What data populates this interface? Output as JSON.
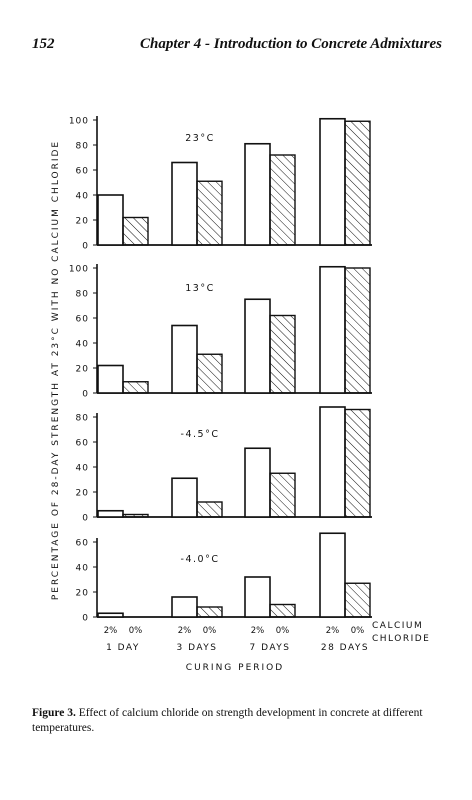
{
  "header": {
    "page_number": "152",
    "chapter_title": "Chapter 4 - Introduction to Concrete Admixtures"
  },
  "caption": {
    "label": "Figure 3.",
    "text": "Effect of calcium chloride on strength development in concrete at different temperatures."
  },
  "chart_data": {
    "type": "bar",
    "ylabel": "PERCENTAGE OF 28-DAY STRENGTH AT 23°C WITH NO CALCIUM CHLORIDE",
    "xlabel": "CURING PERIOD",
    "legend_title": "CALCIUM CHLORIDE",
    "categories": [
      "1 DAY",
      "3 DAYS",
      "7 DAYS",
      "28 DAYS"
    ],
    "bar_labels": [
      "2%",
      "0%"
    ],
    "series_styles": [
      {
        "label": "2%",
        "fill": "#ffffff",
        "pattern": "none"
      },
      {
        "label": "0%",
        "fill": "#ffffff",
        "pattern": "diagonal-hatch"
      }
    ],
    "panels": [
      {
        "temperature": "23°C",
        "ylim": [
          0,
          100
        ],
        "yticks": [
          0,
          20,
          40,
          60,
          80,
          100
        ],
        "values_2pct": [
          40,
          66,
          81,
          101
        ],
        "values_0pct": [
          22,
          51,
          72,
          99
        ]
      },
      {
        "temperature": "13°C",
        "ylim": [
          0,
          100
        ],
        "yticks": [
          0,
          20,
          40,
          60,
          80,
          100
        ],
        "values_2pct": [
          22,
          54,
          75,
          101
        ],
        "values_0pct": [
          9,
          31,
          62,
          100
        ]
      },
      {
        "temperature": "-4.5°C",
        "ylim": [
          0,
          80
        ],
        "yticks": [
          0,
          20,
          40,
          60,
          80
        ],
        "values_2pct": [
          5,
          31,
          55,
          88
        ],
        "values_0pct": [
          2,
          12,
          35,
          86
        ]
      },
      {
        "temperature": "-4.0°C",
        "ylim": [
          0,
          60
        ],
        "yticks": [
          0,
          20,
          40,
          60
        ],
        "values_2pct": [
          3,
          16,
          32,
          67
        ],
        "values_0pct": [
          0,
          8,
          10,
          27
        ]
      }
    ]
  }
}
